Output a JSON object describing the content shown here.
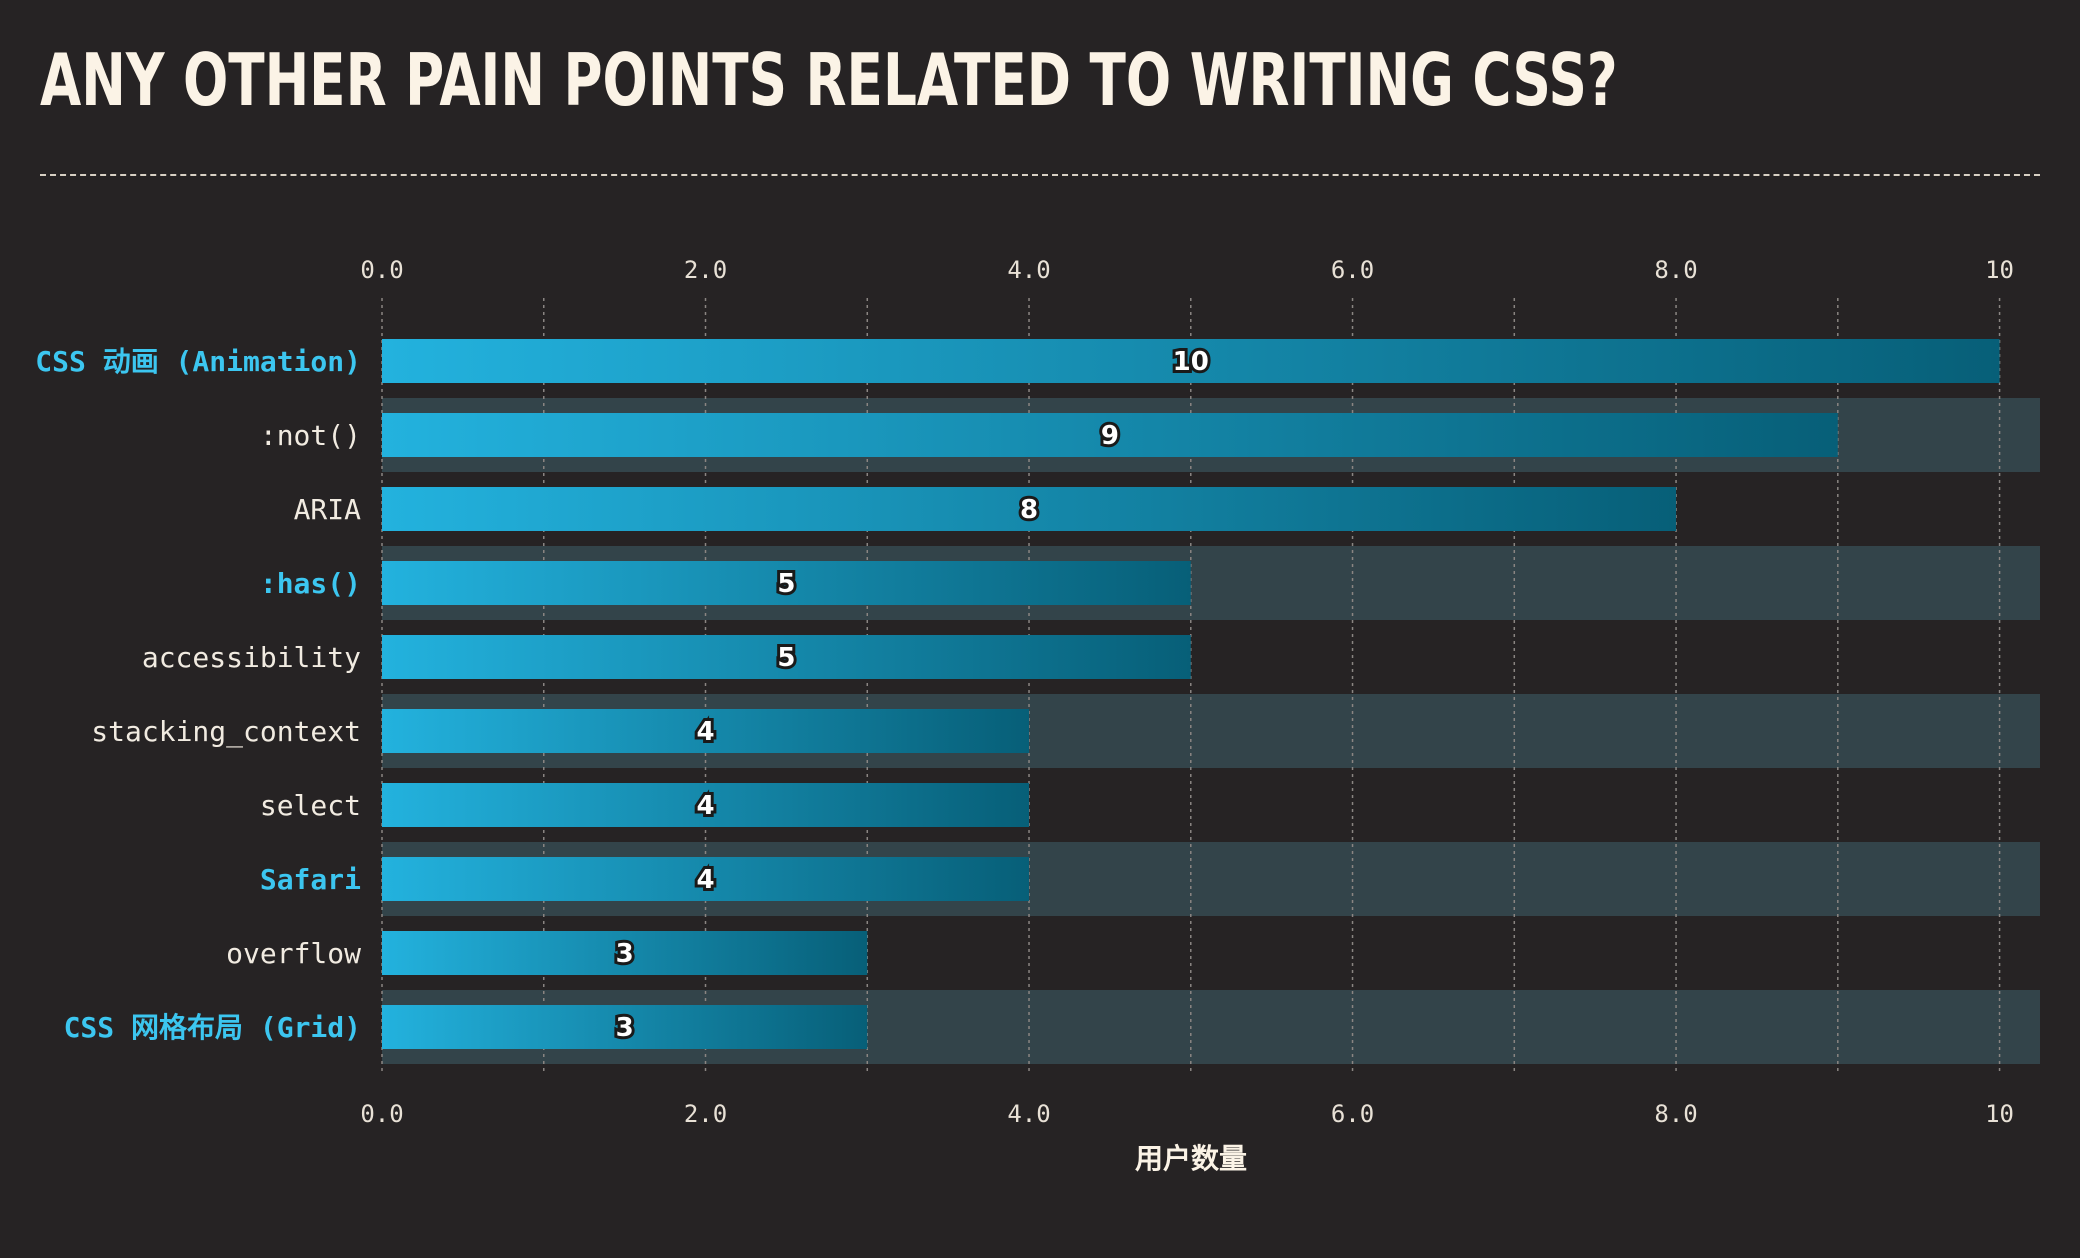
{
  "title": "ANY OTHER PAIN POINTS RELATED TO WRITING CSS?",
  "colors": {
    "background": "#262324",
    "bar_start": "#23b2de",
    "bar_end": "#075f78",
    "row_band": "#33444a",
    "text": "#f1ebe1",
    "highlight": "#3cc6f0"
  },
  "chart_data": {
    "type": "bar",
    "orientation": "horizontal",
    "categories": [
      "CSS 动画 (Animation)",
      ":not()",
      "ARIA",
      ":has()",
      "accessibility",
      "stacking_context",
      "select",
      "Safari",
      "overflow",
      "CSS 网格布局  (Grid)"
    ],
    "highlighted": [
      true,
      false,
      false,
      true,
      false,
      false,
      false,
      true,
      false,
      true
    ],
    "values": [
      10,
      9,
      8,
      5,
      5,
      4,
      4,
      4,
      3,
      3
    ],
    "data_labels": [
      "10",
      "9",
      "8",
      "5",
      "5",
      "4",
      "4",
      "4",
      "3",
      "3"
    ],
    "xlabel": "用户数量",
    "ylabel": "",
    "xlim": [
      0,
      10.25
    ],
    "tick_values": [
      0,
      2,
      4,
      6,
      8,
      10
    ],
    "tick_labels": [
      "0.0",
      "2.0",
      "4.0",
      "6.0",
      "8.0",
      "10"
    ],
    "minor_grid": [
      1,
      3,
      5,
      7,
      9
    ],
    "grid": true,
    "axis_ticks_top_and_bottom": true
  }
}
